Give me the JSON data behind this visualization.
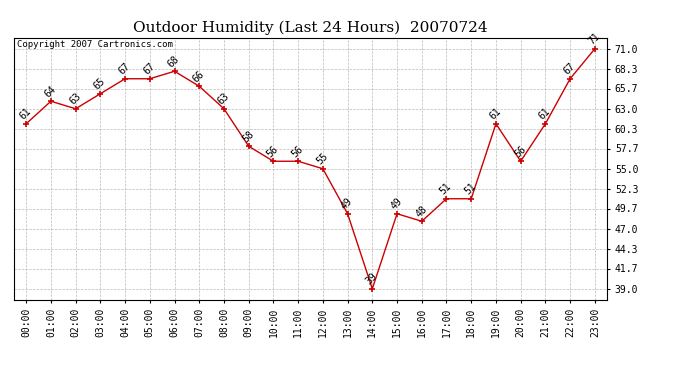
{
  "title": "Outdoor Humidity (Last 24 Hours)  20070724",
  "copyright": "Copyright 2007 Cartronics.com",
  "x_labels": [
    "00:00",
    "01:00",
    "02:00",
    "03:00",
    "04:00",
    "05:00",
    "06:00",
    "07:00",
    "08:00",
    "09:00",
    "10:00",
    "11:00",
    "12:00",
    "13:00",
    "14:00",
    "15:00",
    "16:00",
    "17:00",
    "18:00",
    "19:00",
    "20:00",
    "21:00",
    "22:00",
    "23:00"
  ],
  "x_values": [
    0,
    1,
    2,
    3,
    4,
    5,
    6,
    7,
    8,
    9,
    10,
    11,
    12,
    13,
    14,
    15,
    16,
    17,
    18,
    19,
    20,
    21,
    22,
    23
  ],
  "y_values": [
    61,
    64,
    63,
    65,
    67,
    67,
    68,
    66,
    63,
    58,
    56,
    56,
    55,
    49,
    39,
    49,
    48,
    51,
    51,
    61,
    56,
    61,
    67,
    71
  ],
  "y_ticks": [
    39.0,
    41.7,
    44.3,
    47.0,
    49.7,
    52.3,
    55.0,
    57.7,
    60.3,
    63.0,
    65.7,
    68.3,
    71.0
  ],
  "ylim": [
    37.5,
    72.5
  ],
  "xlim": [
    -0.5,
    23.5
  ],
  "line_color": "#cc0000",
  "marker": "+",
  "marker_size": 5,
  "marker_color": "#cc0000",
  "bg_color": "white",
  "grid_color": "#bbbbbb",
  "title_fontsize": 11,
  "tick_fontsize": 7,
  "annot_fontsize": 7,
  "copyright_fontsize": 6.5
}
